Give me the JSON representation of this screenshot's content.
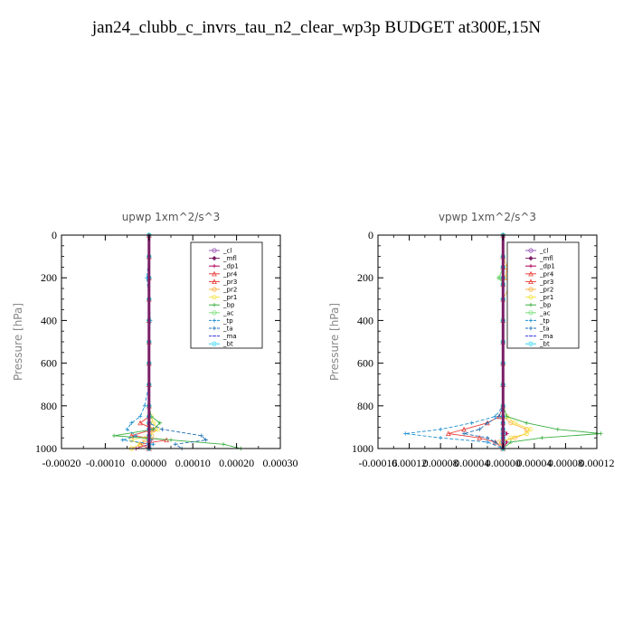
{
  "title": "jan24_clubb_c_invrs_tau_n2_clear_wp3p  BUDGET at300E,15N",
  "legend_names": [
    "_cl",
    "_mfl",
    "_dp1",
    "_pr4",
    "_pr3",
    "_pr2",
    "_pr1",
    "_bp",
    "_ac",
    "_tp",
    "_ta",
    "_ma",
    "_bt"
  ],
  "colors": {
    "_cl": "#9b59b6",
    "_mfl": "#7a1e66",
    "_dp1": "#b0005a",
    "_pr4": "#e8413c",
    "_pr3": "#e8413c",
    "_pr2": "#ffb347",
    "_pr1": "#f2e34a",
    "_bp": "#3cb043",
    "_ac": "#7ee07e",
    "_tp": "#1f8fd0",
    "_ta": "#1f6fb0",
    "_ma": "#3a3ae0",
    "_bt": "#2ed5f0"
  },
  "chart_data": [
    {
      "type": "line",
      "title": "upwp   1xm^2/s^3",
      "ylabel": "Pressure [hPa]",
      "ylim": [
        1000,
        0
      ],
      "xlim": [
        -0.0002,
        0.0003
      ],
      "xticks": [
        "-0.00020",
        "-0.00010",
        "0.00000",
        "0.00010",
        "0.00020",
        "0.00030"
      ],
      "yticks": [
        "0",
        "200",
        "400",
        "600",
        "800",
        "1000"
      ],
      "y": [
        0,
        100,
        200,
        300,
        400,
        500,
        600,
        700,
        800,
        850,
        880,
        910,
        940,
        960,
        980,
        1000
      ],
      "series": [
        {
          "name": "_cl",
          "values": [
            0,
            0,
            0,
            0,
            0,
            0,
            0,
            0,
            0,
            0,
            0,
            0,
            0,
            0,
            0,
            0
          ]
        },
        {
          "name": "_mfl",
          "values": [
            0,
            0,
            0,
            0,
            0,
            0,
            0,
            0,
            0,
            0,
            0,
            0,
            0,
            0,
            0,
            0
          ]
        },
        {
          "name": "_dp1",
          "values": [
            0,
            0,
            0,
            0,
            0,
            0,
            0,
            0,
            0,
            0,
            0,
            0,
            0,
            5e-06,
            0,
            -3e-05
          ]
        },
        {
          "name": "_pr4",
          "values": [
            0,
            0,
            0,
            0,
            0,
            0,
            0,
            0,
            0,
            0,
            0,
            0,
            0,
            0,
            0,
            0
          ]
        },
        {
          "name": "_pr3",
          "values": [
            0,
            0,
            0,
            0,
            0,
            0,
            0,
            0,
            0,
            0,
            -2e-05,
            1e-05,
            -4e-05,
            4e-05,
            -2e-05,
            0
          ]
        },
        {
          "name": "_pr2",
          "values": [
            0,
            0,
            0,
            0,
            0,
            0,
            0,
            0,
            0,
            0,
            2e-06,
            4e-06,
            6e-06,
            -1e-05,
            -2e-05,
            -4e-05
          ]
        },
        {
          "name": "_pr1",
          "values": [
            0,
            0,
            0,
            0,
            0,
            0,
            0,
            0,
            0,
            5e-06,
            1e-05,
            2e-05,
            0,
            -4e-05,
            -2e-05,
            -4e-05
          ]
        },
        {
          "name": "_bp",
          "values": [
            0,
            0,
            0,
            0,
            0,
            0,
            0,
            0,
            0,
            5e-06,
            2.5e-05,
            1e-05,
            -8e-05,
            5e-05,
            0.00017,
            0.00021
          ]
        },
        {
          "name": "_ac",
          "values": [
            0,
            0,
            0,
            0,
            0,
            0,
            0,
            0,
            0,
            0,
            0,
            0,
            0,
            0,
            0,
            0
          ]
        },
        {
          "name": "_tp",
          "values": [
            0,
            0,
            -5e-06,
            0,
            3e-06,
            0,
            0,
            0,
            -1e-05,
            -2e-05,
            -4e-05,
            -5e-05,
            -3e-05,
            -6e-05,
            1e-05,
            0
          ]
        },
        {
          "name": "_ta",
          "values": [
            0,
            0,
            0,
            0,
            0,
            0,
            0,
            0,
            0,
            0,
            0,
            3e-05,
            0.00012,
            0.00013,
            6e-05,
            7.5e-05
          ]
        },
        {
          "name": "_ma",
          "values": [
            0,
            0,
            0,
            0,
            0,
            0,
            0,
            0,
            0,
            0,
            0,
            0,
            0,
            0,
            0,
            0
          ]
        },
        {
          "name": "_bt",
          "values": [
            0,
            0,
            0,
            0,
            0,
            0,
            0,
            0,
            0,
            0,
            0,
            0,
            0,
            0,
            0,
            0
          ]
        }
      ]
    },
    {
      "type": "line",
      "title": "vpwp   1xm^2/s^3",
      "ylabel": "Pressure [hPa]",
      "ylim": [
        1000,
        0
      ],
      "xlim": [
        -0.00016,
        0.00012
      ],
      "xticks": [
        "-0.00016",
        "0.00012",
        "0.00008",
        "0.00004",
        "0.00000",
        "0.00004",
        "0.00008",
        "0.00012"
      ],
      "yticks": [
        "0",
        "200",
        "400",
        "600",
        "800",
        "1000"
      ],
      "y": [
        0,
        100,
        150,
        200,
        230,
        300,
        400,
        500,
        600,
        700,
        800,
        850,
        880,
        910,
        930,
        950,
        970,
        1000
      ],
      "series": [
        {
          "name": "_cl",
          "values": [
            0,
            0,
            0,
            0,
            0,
            0,
            0,
            0,
            0,
            0,
            0,
            0,
            0,
            0,
            0,
            0,
            0,
            0
          ]
        },
        {
          "name": "_mfl",
          "values": [
            0,
            0,
            0,
            0,
            0,
            0,
            0,
            0,
            0,
            0,
            0,
            0,
            0,
            0,
            0,
            0,
            0,
            0
          ]
        },
        {
          "name": "_dp1",
          "values": [
            0,
            0,
            0,
            0,
            0,
            0,
            0,
            0,
            0,
            0,
            0,
            0,
            0,
            0,
            5e-06,
            0,
            5e-06,
            0
          ]
        },
        {
          "name": "_pr4",
          "values": [
            0,
            0,
            0,
            0,
            0,
            0,
            0,
            0,
            0,
            0,
            0,
            0,
            0,
            0,
            0,
            0,
            0,
            0
          ]
        },
        {
          "name": "_pr3",
          "values": [
            0,
            0,
            0,
            0,
            0,
            0,
            0,
            0,
            0,
            0,
            0,
            -5e-06,
            -2e-05,
            -5e-05,
            -7e-05,
            -3e-05,
            -1e-05,
            0
          ]
        },
        {
          "name": "_pr2",
          "values": [
            0,
            0,
            5e-06,
            3e-06,
            1e-05,
            0,
            0,
            0,
            0,
            0,
            0,
            0,
            1e-05,
            3e-05,
            3e-05,
            1.5e-05,
            -5e-06,
            0
          ]
        },
        {
          "name": "_pr1",
          "values": [
            0,
            0,
            0,
            0,
            0,
            0,
            0,
            0,
            0,
            0,
            0,
            5e-06,
            1.5e-05,
            3.5e-05,
            3e-05,
            1e-05,
            0,
            0
          ]
        },
        {
          "name": "_bp",
          "values": [
            0,
            0,
            0,
            -5e-06,
            0,
            0,
            0,
            0,
            0,
            0,
            0,
            5e-06,
            3e-05,
            7e-05,
            0.000125,
            5e-05,
            1e-05,
            0
          ]
        },
        {
          "name": "_ac",
          "values": [
            0,
            0,
            0,
            -5e-06,
            0,
            0,
            0,
            0,
            0,
            0,
            0,
            0,
            0,
            0,
            0,
            0,
            0,
            0
          ]
        },
        {
          "name": "_tp",
          "values": [
            0,
            0,
            0,
            0,
            0,
            0,
            0,
            0,
            0,
            0,
            0,
            -1e-05,
            -4e-05,
            -8e-05,
            -0.000125,
            -8e-05,
            -2e-05,
            0
          ]
        },
        {
          "name": "_ta",
          "values": [
            0,
            0,
            0,
            0,
            0,
            0,
            0,
            0,
            0,
            0,
            0,
            -5e-06,
            -2e-05,
            -3e-05,
            -5e-05,
            -2e-05,
            -1e-05,
            0
          ]
        },
        {
          "name": "_ma",
          "values": [
            0,
            0,
            0,
            0,
            0,
            0,
            0,
            0,
            0,
            0,
            0,
            0,
            0,
            0,
            0,
            0,
            0,
            0
          ]
        },
        {
          "name": "_bt",
          "values": [
            0,
            0,
            0,
            0,
            0,
            0,
            0,
            0,
            0,
            0,
            0,
            0,
            0,
            0,
            0,
            0,
            0,
            0
          ]
        }
      ]
    }
  ]
}
